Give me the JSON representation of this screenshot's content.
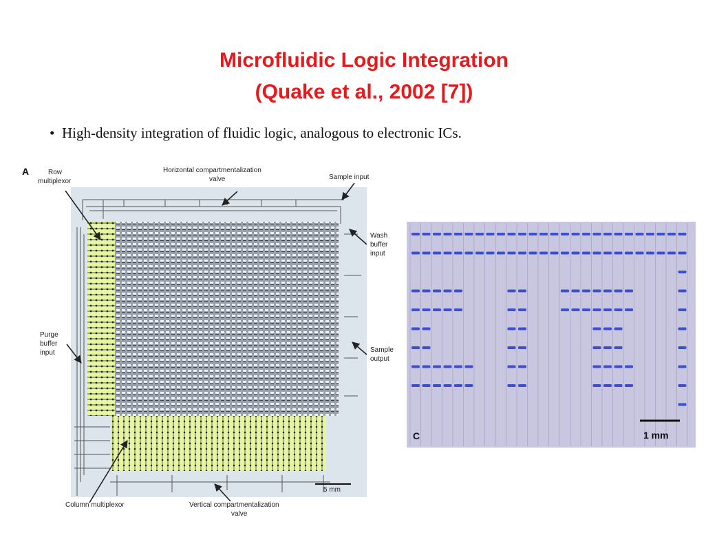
{
  "title_line1": "Microfluidic Logic Integration",
  "title_line2": "(Quake et al., 2002 [7])",
  "bullet": "High-density integration of fluidic logic, analogous to electronic ICs.",
  "colors": {
    "title": "#e8191b",
    "chip_bg": "#dde5ec",
    "multiplexor": "#e6f5a0",
    "stain": "#3b4fd0",
    "photo_bg": "#c9c6e0"
  },
  "panel_a": {
    "letter": "A",
    "labels": {
      "row_mux_1": "Row",
      "row_mux_2": "multiplexor",
      "horiz_valve_1": "Horizontal compartmentalization",
      "horiz_valve_2": "valve",
      "sample_input": "Sample input",
      "wash_1": "Wash",
      "wash_2": "buffer",
      "wash_3": "input",
      "purge_1": "Purge",
      "purge_2": "buffer",
      "purge_3": "input",
      "sample_out_1": "Sample",
      "sample_out_2": "output",
      "col_mux": "Column multiplexor",
      "vert_valve_1": "Vertical compartmentalization",
      "vert_valve_2": "valve",
      "scale": "5 mm"
    }
  },
  "panel_c": {
    "letter": "C",
    "scale": "1 mm",
    "pattern": [
      "11111111111111111111111111",
      "11111111111111111111111111",
      "00000000000000000000000001",
      "11111000011000111111100001",
      "11111000011000111111100001",
      "11000000011000000111000001",
      "11000000011000000111000001",
      "11111100011000000111100001",
      "11111100011000000111100001",
      "00000000000000000000000001"
    ]
  }
}
